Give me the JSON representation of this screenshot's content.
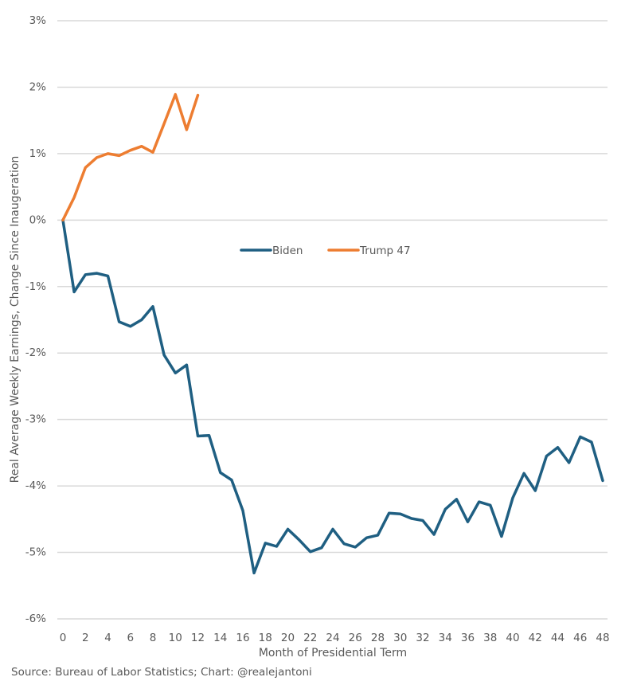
{
  "chart_data": {
    "type": "line",
    "title": "",
    "xlabel": "Month of Presidential Term",
    "ylabel": "Real Average Weekly Earnings, Change Since Inaugeration",
    "source": "Source: Bureau of Labor Statistics; Chart: @realejantoni",
    "xlim": [
      0,
      48
    ],
    "ylim": [
      -6,
      3
    ],
    "x_ticks": [
      0,
      2,
      4,
      6,
      8,
      10,
      12,
      14,
      16,
      18,
      20,
      22,
      24,
      26,
      28,
      30,
      32,
      34,
      36,
      38,
      40,
      42,
      44,
      46,
      48
    ],
    "y_ticks": [
      3,
      2,
      1,
      0,
      -1,
      -2,
      -3,
      -4,
      -5,
      -6
    ],
    "y_tick_labels": [
      "3%",
      "2%",
      "1%",
      "0%",
      "-1%",
      "-2%",
      "-3%",
      "-4%",
      "-5%",
      "-6%"
    ],
    "grid": "horizontal",
    "legend_position": "center",
    "series": [
      {
        "name": "Biden",
        "color": "#1f5f82",
        "x": [
          0,
          1,
          2,
          3,
          4,
          5,
          6,
          7,
          8,
          9,
          10,
          11,
          12,
          13,
          14,
          15,
          16,
          17,
          18,
          19,
          20,
          21,
          22,
          23,
          24,
          25,
          26,
          27,
          28,
          29,
          30,
          31,
          32,
          33,
          34,
          35,
          36,
          37,
          38,
          39,
          40,
          41,
          42,
          43,
          44,
          45,
          46,
          47,
          48
        ],
        "values": [
          0,
          -1.08,
          -0.82,
          -0.8,
          -0.84,
          -1.53,
          -1.6,
          -1.5,
          -1.3,
          -2.03,
          -2.3,
          -2.18,
          -3.25,
          -3.24,
          -3.8,
          -3.91,
          -4.37,
          -5.31,
          -4.86,
          -4.91,
          -4.65,
          -4.81,
          -4.99,
          -4.93,
          -4.65,
          -4.87,
          -4.92,
          -4.78,
          -4.74,
          -4.41,
          -4.42,
          -4.49,
          -4.52,
          -4.73,
          -4.35,
          -4.2,
          -4.54,
          -4.24,
          -4.29,
          -4.76,
          -4.18,
          -3.81,
          -4.07,
          -3.55,
          -3.42,
          -3.65,
          -3.26,
          -3.34,
          -3.92
        ]
      },
      {
        "name": "Trump 47",
        "color": "#ed7d31",
        "x": [
          0,
          1,
          2,
          3,
          4,
          5,
          6,
          7,
          8,
          9,
          10,
          11,
          12
        ],
        "values": [
          0,
          0.34,
          0.79,
          0.94,
          1.0,
          0.97,
          1.05,
          1.11,
          1.02,
          1.45,
          1.89,
          1.36,
          1.88
        ]
      }
    ]
  }
}
